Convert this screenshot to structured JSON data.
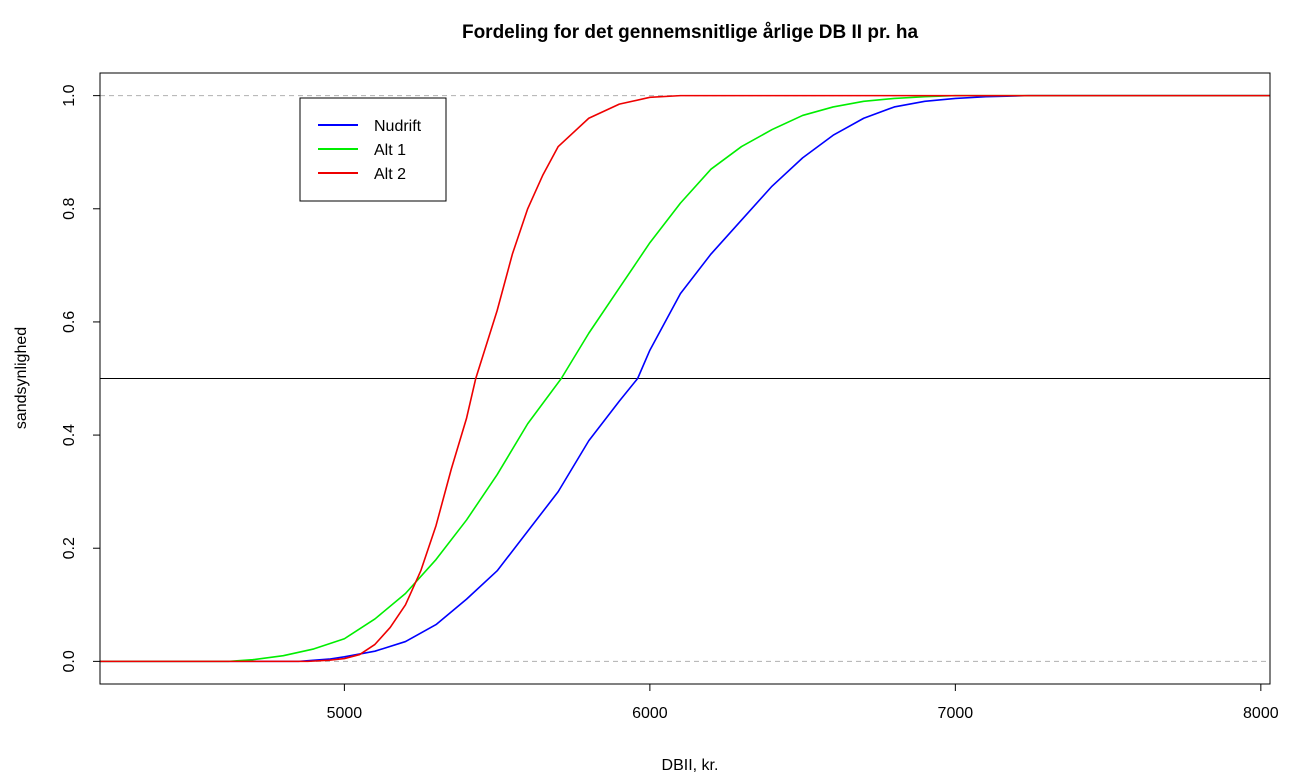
{
  "chart_data": {
    "type": "line",
    "title": "Fordeling for det gennemsnitlige årlige DB II pr. ha",
    "xlabel": "DBII, kr.",
    "ylabel": "sandsynlighed",
    "xlim": [
      4200,
      8030
    ],
    "ylim": [
      -0.04,
      1.04
    ],
    "x_ticks": [
      5000,
      6000,
      7000,
      8000
    ],
    "x_tick_labels": [
      "5000",
      "6000",
      "7000",
      "8000"
    ],
    "y_ticks": [
      0.0,
      0.2,
      0.4,
      0.6,
      0.8,
      1.0
    ],
    "y_tick_labels": [
      "0.0",
      "0.2",
      "0.4",
      "0.6",
      "0.8",
      "1.0"
    ],
    "reference_lines": [
      {
        "y": 0,
        "style": "dashed",
        "color": "#b0b0b0"
      },
      {
        "y": 1,
        "style": "dashed",
        "color": "#b0b0b0"
      },
      {
        "y": 0.5,
        "style": "solid",
        "color": "#000000"
      }
    ],
    "legend_position": "top-left",
    "series": [
      {
        "name": "Nudrift",
        "color": "#0000ff",
        "points": [
          [
            4200,
            0.0
          ],
          [
            4850,
            0.0
          ],
          [
            4950,
            0.004
          ],
          [
            5000,
            0.008
          ],
          [
            5100,
            0.018
          ],
          [
            5200,
            0.035
          ],
          [
            5300,
            0.065
          ],
          [
            5400,
            0.11
          ],
          [
            5500,
            0.16
          ],
          [
            5600,
            0.23
          ],
          [
            5700,
            0.3
          ],
          [
            5800,
            0.39
          ],
          [
            5900,
            0.46
          ],
          [
            5960,
            0.5
          ],
          [
            6000,
            0.55
          ],
          [
            6100,
            0.65
          ],
          [
            6200,
            0.72
          ],
          [
            6300,
            0.78
          ],
          [
            6400,
            0.84
          ],
          [
            6500,
            0.89
          ],
          [
            6600,
            0.93
          ],
          [
            6700,
            0.96
          ],
          [
            6800,
            0.98
          ],
          [
            6900,
            0.99
          ],
          [
            7000,
            0.995
          ],
          [
            7100,
            0.998
          ],
          [
            7240,
            1.0
          ],
          [
            8030,
            1.0
          ]
        ]
      },
      {
        "name": "Alt 1",
        "color": "#00ee00",
        "points": [
          [
            4200,
            0.0
          ],
          [
            4620,
            0.0
          ],
          [
            4700,
            0.003
          ],
          [
            4800,
            0.01
          ],
          [
            4900,
            0.022
          ],
          [
            5000,
            0.04
          ],
          [
            5100,
            0.075
          ],
          [
            5200,
            0.12
          ],
          [
            5300,
            0.18
          ],
          [
            5400,
            0.25
          ],
          [
            5500,
            0.33
          ],
          [
            5600,
            0.42
          ],
          [
            5710,
            0.5
          ],
          [
            5800,
            0.58
          ],
          [
            5900,
            0.66
          ],
          [
            6000,
            0.74
          ],
          [
            6100,
            0.81
          ],
          [
            6200,
            0.87
          ],
          [
            6300,
            0.91
          ],
          [
            6400,
            0.94
          ],
          [
            6500,
            0.965
          ],
          [
            6600,
            0.98
          ],
          [
            6700,
            0.99
          ],
          [
            6800,
            0.995
          ],
          [
            6900,
            0.998
          ],
          [
            7000,
            1.0
          ],
          [
            8030,
            1.0
          ]
        ]
      },
      {
        "name": "Alt 2",
        "color": "#ee0000",
        "points": [
          [
            4200,
            0.0
          ],
          [
            4880,
            0.0
          ],
          [
            4950,
            0.002
          ],
          [
            5000,
            0.005
          ],
          [
            5050,
            0.012
          ],
          [
            5100,
            0.03
          ],
          [
            5150,
            0.06
          ],
          [
            5200,
            0.1
          ],
          [
            5250,
            0.16
          ],
          [
            5300,
            0.24
          ],
          [
            5350,
            0.34
          ],
          [
            5400,
            0.43
          ],
          [
            5430,
            0.5
          ],
          [
            5500,
            0.62
          ],
          [
            5550,
            0.72
          ],
          [
            5600,
            0.8
          ],
          [
            5650,
            0.86
          ],
          [
            5700,
            0.91
          ],
          [
            5800,
            0.96
          ],
          [
            5900,
            0.985
          ],
          [
            6000,
            0.997
          ],
          [
            6100,
            1.0
          ],
          [
            8030,
            1.0
          ]
        ]
      }
    ]
  }
}
